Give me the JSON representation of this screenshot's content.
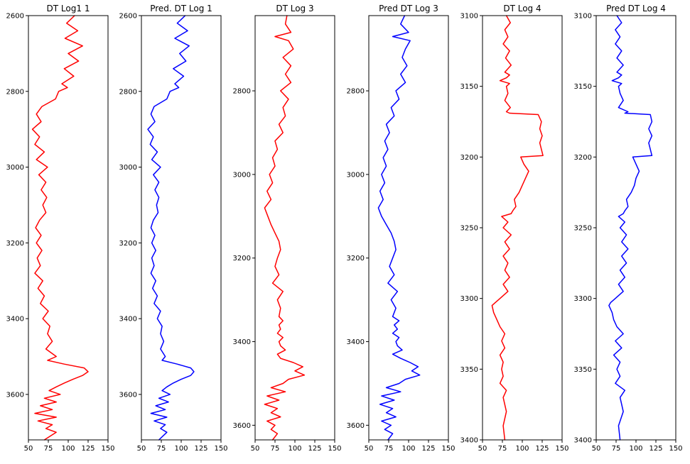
{
  "chart_data": [
    {
      "type": "line",
      "title": "DT Log1 1",
      "color": "#ff0000",
      "xlim": [
        50,
        150
      ],
      "ylim": [
        3720,
        2600
      ],
      "xticks": [
        50,
        75,
        100,
        125,
        150
      ],
      "yticks": [
        2600,
        2800,
        3000,
        3200,
        3400,
        3600
      ],
      "x": [
        108,
        98,
        112,
        96,
        118,
        100,
        113,
        95,
        107,
        92,
        99,
        88,
        84,
        67,
        60,
        66,
        55,
        64,
        58,
        70,
        60,
        74,
        63,
        72,
        66,
        73,
        68,
        72,
        64,
        59,
        66,
        60,
        67,
        61,
        65,
        58,
        68,
        62,
        70,
        65,
        75,
        68,
        77,
        74,
        80,
        72,
        85,
        74,
        95,
        120,
        125,
        118,
        106,
        95,
        85,
        76,
        90,
        70,
        85,
        65,
        80,
        58,
        85,
        62,
        80,
        72,
        85,
        70
      ],
      "y": [
        2600,
        2620,
        2640,
        2660,
        2680,
        2700,
        2720,
        2740,
        2760,
        2780,
        2790,
        2800,
        2820,
        2840,
        2860,
        2880,
        2900,
        2920,
        2940,
        2960,
        2980,
        3000,
        3020,
        3040,
        3060,
        3080,
        3100,
        3120,
        3140,
        3160,
        3180,
        3200,
        3220,
        3240,
        3260,
        3280,
        3300,
        3320,
        3340,
        3360,
        3380,
        3400,
        3420,
        3440,
        3460,
        3480,
        3500,
        3510,
        3520,
        3530,
        3540,
        3550,
        3560,
        3570,
        3580,
        3590,
        3600,
        3610,
        3620,
        3630,
        3640,
        3650,
        3660,
        3670,
        3680,
        3690,
        3700,
        3720
      ]
    },
    {
      "type": "line",
      "title": "Pred. DT Log 1",
      "color": "#0000ff",
      "xlim": [
        50,
        150
      ],
      "ylim": [
        3720,
        2600
      ],
      "xticks": [
        50,
        75,
        100,
        125,
        150
      ],
      "yticks": [
        2600,
        2800,
        3000,
        3200,
        3400,
        3600
      ],
      "x": [
        105,
        95,
        108,
        92,
        110,
        98,
        106,
        90,
        103,
        92,
        97,
        86,
        82,
        66,
        62,
        67,
        58,
        65,
        61,
        70,
        63,
        74,
        65,
        72,
        67,
        72,
        69,
        71,
        65,
        62,
        67,
        63,
        68,
        63,
        66,
        62,
        68,
        64,
        70,
        66,
        74,
        70,
        76,
        74,
        78,
        74,
        80,
        76,
        95,
        112,
        116,
        112,
        100,
        90,
        82,
        76,
        86,
        72,
        84,
        68,
        80,
        62,
        82,
        66,
        80,
        74,
        82,
        72
      ],
      "y": [
        2600,
        2620,
        2640,
        2660,
        2680,
        2700,
        2720,
        2740,
        2760,
        2780,
        2790,
        2800,
        2820,
        2840,
        2860,
        2880,
        2900,
        2920,
        2940,
        2960,
        2980,
        3000,
        3020,
        3040,
        3060,
        3080,
        3100,
        3120,
        3140,
        3160,
        3180,
        3200,
        3220,
        3240,
        3260,
        3280,
        3300,
        3320,
        3340,
        3360,
        3380,
        3400,
        3420,
        3440,
        3460,
        3480,
        3500,
        3510,
        3520,
        3530,
        3540,
        3550,
        3560,
        3570,
        3580,
        3590,
        3600,
        3610,
        3620,
        3630,
        3640,
        3650,
        3660,
        3670,
        3680,
        3690,
        3700,
        3720
      ]
    },
    {
      "type": "line",
      "title": "DT Log 3",
      "color": "#ff0000",
      "xlim": [
        50,
        150
      ],
      "ylim": [
        3635,
        2620
      ],
      "xticks": [
        50,
        75,
        100,
        125,
        150
      ],
      "yticks": [
        2800,
        3000,
        3200,
        3400,
        3600
      ],
      "x": [
        90,
        88,
        95,
        75,
        92,
        98,
        85,
        95,
        88,
        95,
        82,
        92,
        85,
        88,
        80,
        85,
        75,
        78,
        72,
        75,
        68,
        72,
        65,
        70,
        62,
        66,
        70,
        75,
        80,
        82,
        78,
        75,
        80,
        72,
        85,
        78,
        82,
        80,
        85,
        80,
        82,
        78,
        85,
        80,
        82,
        88,
        78,
        82,
        98,
        110,
        100,
        112,
        92,
        85,
        70,
        88,
        65,
        80,
        62,
        78,
        70,
        82,
        65,
        75,
        70,
        78,
        72
      ],
      "y": [
        2620,
        2640,
        2660,
        2670,
        2680,
        2700,
        2720,
        2740,
        2760,
        2780,
        2800,
        2820,
        2840,
        2860,
        2880,
        2900,
        2920,
        2940,
        2960,
        2980,
        3000,
        3020,
        3040,
        3060,
        3080,
        3100,
        3120,
        3140,
        3160,
        3180,
        3200,
        3220,
        3240,
        3260,
        3280,
        3300,
        3320,
        3340,
        3350,
        3360,
        3370,
        3380,
        3390,
        3400,
        3410,
        3420,
        3430,
        3440,
        3450,
        3460,
        3470,
        3480,
        3490,
        3500,
        3510,
        3520,
        3530,
        3540,
        3550,
        3560,
        3570,
        3580,
        3590,
        3600,
        3610,
        3620,
        3635
      ]
    },
    {
      "type": "line",
      "title": "Pred DT Log 3",
      "color": "#0000ff",
      "xlim": [
        50,
        150
      ],
      "ylim": [
        3635,
        2620
      ],
      "xticks": [
        50,
        75,
        100,
        125,
        150
      ],
      "yticks": [
        2800,
        3000,
        3200,
        3400,
        3600
      ],
      "x": [
        95,
        90,
        100,
        80,
        102,
        96,
        92,
        98,
        90,
        96,
        84,
        88,
        78,
        82,
        72,
        76,
        70,
        74,
        68,
        72,
        66,
        70,
        64,
        68,
        62,
        66,
        72,
        78,
        82,
        84,
        80,
        76,
        82,
        74,
        86,
        78,
        84,
        80,
        88,
        82,
        86,
        80,
        88,
        84,
        86,
        92,
        80,
        90,
        102,
        112,
        104,
        114,
        96,
        88,
        72,
        90,
        66,
        82,
        64,
        80,
        72,
        84,
        66,
        78,
        70,
        80,
        74
      ],
      "y": [
        2620,
        2640,
        2660,
        2670,
        2680,
        2700,
        2720,
        2740,
        2760,
        2780,
        2800,
        2820,
        2840,
        2860,
        2880,
        2900,
        2920,
        2940,
        2960,
        2980,
        3000,
        3020,
        3040,
        3060,
        3080,
        3100,
        3120,
        3140,
        3160,
        3180,
        3200,
        3220,
        3240,
        3260,
        3280,
        3300,
        3320,
        3340,
        3350,
        3360,
        3370,
        3380,
        3390,
        3400,
        3410,
        3420,
        3430,
        3440,
        3450,
        3460,
        3470,
        3480,
        3490,
        3500,
        3510,
        3520,
        3530,
        3540,
        3550,
        3560,
        3570,
        3580,
        3590,
        3600,
        3610,
        3620,
        3635
      ]
    },
    {
      "type": "line",
      "title": "DT Log 4",
      "color": "#ff0000",
      "xlim": [
        50,
        150
      ],
      "ylim": [
        3400,
        3100
      ],
      "xticks": [
        50,
        75,
        100,
        125,
        150
      ],
      "yticks": [
        3100,
        3150,
        3200,
        3250,
        3300,
        3350,
        3400
      ],
      "x": [
        80,
        85,
        78,
        82,
        76,
        84,
        79,
        86,
        78,
        84,
        80,
        72,
        84,
        80,
        82,
        78,
        85,
        80,
        84,
        120,
        124,
        122,
        125,
        122,
        126,
        98,
        102,
        108,
        104,
        100,
        96,
        90,
        92,
        88,
        86,
        74,
        82,
        76,
        86,
        78,
        84,
        76,
        82,
        78,
        84,
        76,
        82,
        72,
        66,
        62,
        64,
        68,
        72,
        78,
        74,
        78,
        72,
        76,
        74,
        76,
        72,
        80,
        76,
        80,
        76,
        78
      ],
      "y": [
        3100,
        3105,
        3110,
        3115,
        3120,
        3125,
        3130,
        3135,
        3140,
        3142,
        3144,
        3146,
        3148,
        3150,
        3155,
        3160,
        3165,
        3168,
        3169,
        3170,
        3175,
        3180,
        3185,
        3190,
        3199,
        3200,
        3205,
        3210,
        3215,
        3220,
        3225,
        3230,
        3235,
        3238,
        3240,
        3242,
        3246,
        3250,
        3255,
        3260,
        3265,
        3270,
        3275,
        3280,
        3285,
        3290,
        3295,
        3300,
        3303,
        3305,
        3310,
        3315,
        3320,
        3325,
        3330,
        3335,
        3340,
        3345,
        3350,
        3355,
        3360,
        3365,
        3370,
        3380,
        3390,
        3400
      ]
    },
    {
      "type": "line",
      "title": "Pred DT Log 4",
      "color": "#0000ff",
      "xlim": [
        50,
        150
      ],
      "ylim": [
        3400,
        3100
      ],
      "xticks": [
        50,
        75,
        100,
        125,
        150
      ],
      "yticks": [
        3100,
        3150,
        3200,
        3250,
        3300,
        3350,
        3400
      ],
      "x": [
        76,
        82,
        74,
        80,
        74,
        82,
        76,
        84,
        76,
        82,
        78,
        70,
        82,
        78,
        80,
        84,
        78,
        90,
        86,
        118,
        120,
        116,
        120,
        116,
        120,
        96,
        100,
        104,
        100,
        98,
        94,
        88,
        90,
        86,
        84,
        78,
        86,
        80,
        88,
        82,
        90,
        82,
        88,
        80,
        86,
        78,
        84,
        74,
        68,
        66,
        70,
        72,
        76,
        84,
        74,
        82,
        72,
        80,
        76,
        80,
        74,
        86,
        80,
        84,
        78,
        80
      ],
      "y": [
        3100,
        3105,
        3110,
        3115,
        3120,
        3125,
        3130,
        3135,
        3140,
        3142,
        3144,
        3146,
        3148,
        3150,
        3155,
        3160,
        3165,
        3168,
        3169,
        3170,
        3175,
        3180,
        3185,
        3190,
        3199,
        3200,
        3205,
        3210,
        3215,
        3220,
        3225,
        3230,
        3235,
        3238,
        3240,
        3242,
        3246,
        3250,
        3255,
        3260,
        3265,
        3270,
        3275,
        3280,
        3285,
        3290,
        3295,
        3300,
        3303,
        3305,
        3310,
        3315,
        3320,
        3325,
        3330,
        3335,
        3340,
        3345,
        3350,
        3355,
        3360,
        3365,
        3370,
        3380,
        3390,
        3400
      ]
    }
  ]
}
